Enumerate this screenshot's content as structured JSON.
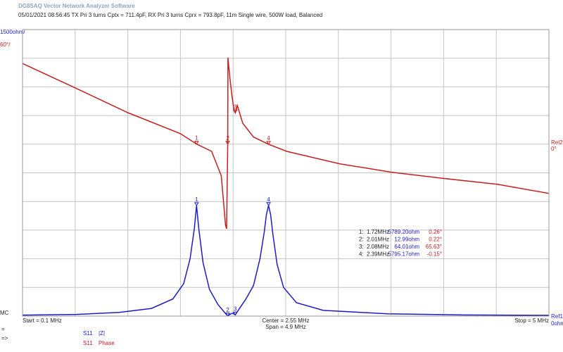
{
  "app_title": "DG8SAQ Vector Network Analyzer Software",
  "info_line": "05/01/2021   08:56:45   TX Pri 3 turns Cptx = 711.4pF, RX Pri 3 turns Cprx = 793.8pF, 11m Single wire, 500W load, Balanced",
  "chart_data": {
    "type": "line",
    "xlim": [
      0.1,
      5
    ],
    "xticks": [
      0.1,
      0.59,
      1.08,
      1.57,
      2.06,
      2.55,
      3.04,
      3.53,
      4.02,
      4.51,
      5
    ],
    "ylim": [
      0,
      15000
    ],
    "yticks": [
      0,
      1500,
      3000,
      4500,
      6000,
      7500,
      9000,
      10500,
      12000,
      13500,
      15000
    ],
    "y2lim": [
      -360,
      240
    ],
    "y2ticks": [
      -360,
      -300,
      -240,
      -180,
      -120,
      -60,
      0,
      60,
      120,
      180,
      240
    ],
    "grid": true,
    "y_scale_label": "1500ohm/",
    "y2_scale_label": "60°/",
    "y_ref_label": [
      "Ref1",
      "0ohm"
    ],
    "y2_ref_label": [
      "Rel2",
      "0°"
    ],
    "left_label": "MC",
    "start_label": "Start = 0.1 MHz",
    "center_label": "Center = 2.55 MHz",
    "span_label": "Span = 4.9 MHz",
    "stop_label": "Stop = 5 MHz",
    "series": [
      {
        "param": "S11",
        "name": "|Z|",
        "color": "#1c1cc4",
        "x": [
          0.1,
          0.6,
          1.0,
          1.3,
          1.5,
          1.6,
          1.66,
          1.7,
          1.72,
          1.74,
          1.78,
          1.84,
          1.92,
          1.98,
          2.01,
          2.04,
          2.06,
          2.08,
          2.12,
          2.18,
          2.25,
          2.31,
          2.35,
          2.37,
          2.39,
          2.41,
          2.43,
          2.47,
          2.53,
          2.65,
          2.9,
          3.5,
          4.2,
          5
        ],
        "values": [
          50,
          90,
          190,
          400,
          900,
          1700,
          3000,
          4600,
          5789,
          4600,
          2800,
          1400,
          600,
          200,
          13,
          120,
          150,
          64,
          400,
          900,
          1600,
          3000,
          4400,
          5300,
          5795,
          5300,
          4300,
          2700,
          1500,
          700,
          300,
          120,
          60,
          40
        ]
      },
      {
        "param": "S11",
        "name": "Phase",
        "color": "#c42020",
        "axis": "y2",
        "x": [
          0.1,
          0.59,
          1.08,
          1.57,
          1.72,
          1.86,
          1.95,
          1.99,
          2.0,
          2.01,
          2.012,
          2.03,
          2.05,
          2.07,
          2.08,
          2.1,
          2.15,
          2.25,
          2.39,
          2.56,
          3.05,
          3.54,
          4.03,
          4.52,
          5
        ],
        "values": [
          169,
          118,
          66,
          22,
          0.26,
          -15,
          -66,
          -170,
          -177,
          0.22,
          181,
          140,
          100,
          70,
          65.63,
          81,
          44,
          15,
          -0.15,
          -15,
          -41,
          -59,
          -72,
          -84,
          -103
        ]
      }
    ],
    "markers": [
      {
        "id": "1",
        "x": 1.72,
        "z": 5789.2,
        "phase": 0.26
      },
      {
        "id": "2",
        "x": 2.01,
        "z": 12.99,
        "phase": 0.22
      },
      {
        "id": "3",
        "x": 2.08,
        "z": 64.01,
        "phase": 65.63
      },
      {
        "id": "4",
        "x": 2.39,
        "z": 5795.17,
        "phase": -0.15
      }
    ],
    "marker_table": [
      [
        "1:",
        "1.72MHz",
        "5789.20ohm",
        "0.26°"
      ],
      [
        "2:",
        "2.01MHz",
        "12.99ohm",
        "0.22°"
      ],
      [
        "3:",
        "2.08MHz",
        "64.01ohm",
        "65.63°"
      ],
      [
        "4:",
        "2.39MHz",
        "5795.17ohm",
        "-0.15°"
      ]
    ]
  },
  "left_symbols": [
    "=",
    "=>"
  ]
}
